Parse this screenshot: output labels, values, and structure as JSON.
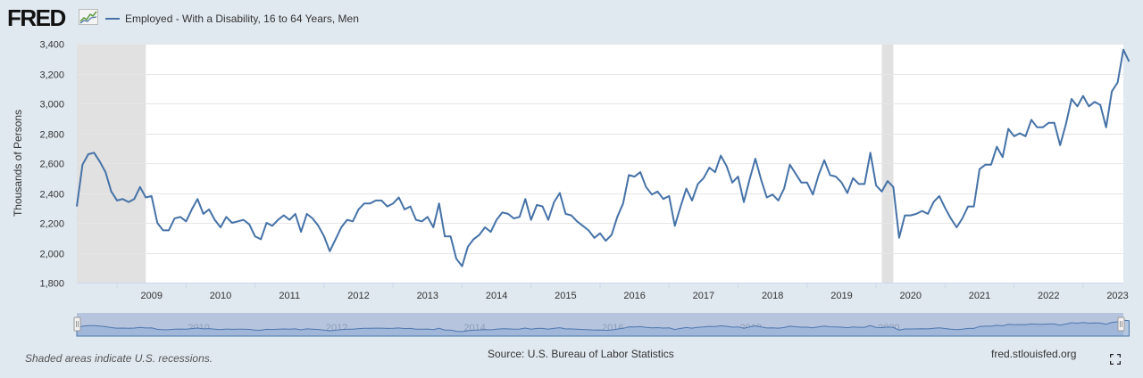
{
  "header": {
    "logo_text": "FRED",
    "legend_label": "Employed - With a Disability, 16 to 64 Years, Men"
  },
  "footer": {
    "recession_note": "Shaded areas indicate U.S. recessions.",
    "source": "Source: U.S. Bureau of Labor Statistics",
    "site": "fred.stlouisfed.org"
  },
  "icons": {
    "logo_graph": "fred-graph-icon",
    "fullscreen": "fullscreen-icon"
  },
  "colors": {
    "series": "#4572a7",
    "recession": "#e1e1e1",
    "navigator_fill": "#b5c8e2",
    "background": "#e1e9f0"
  },
  "chart_data": {
    "type": "line",
    "title": "",
    "xlabel": "",
    "ylabel": "Thousands of Persons",
    "ylim": [
      1800,
      3400
    ],
    "yticks": [
      1800,
      2000,
      2200,
      2400,
      2600,
      2800,
      3000,
      3200,
      3400
    ],
    "yticks_labels": [
      "1,800",
      "2,000",
      "2,200",
      "2,400",
      "2,600",
      "2,800",
      "3,000",
      "3,200",
      "3,400"
    ],
    "xlim": [
      "2008-06",
      "2023-08"
    ],
    "xticks": [
      "2009",
      "2010",
      "2011",
      "2012",
      "2013",
      "2014",
      "2015",
      "2016",
      "2017",
      "2018",
      "2019",
      "2020",
      "2021",
      "2022",
      "2023"
    ],
    "navigator_labels": [
      "2010",
      "2012",
      "2014",
      "2016",
      "2018",
      "2020",
      "2022"
    ],
    "grid": true,
    "legend": "top-left",
    "recessions": [
      {
        "start": "2008-06",
        "end": "2009-06"
      },
      {
        "start": "2020-02",
        "end": "2020-04"
      }
    ],
    "series": [
      {
        "name": "Employed - With a Disability, 16 to 64 Years, Men",
        "start": "2008-06",
        "frequency": "monthly",
        "values": [
          2310,
          2590,
          2660,
          2670,
          2610,
          2540,
          2410,
          2350,
          2360,
          2340,
          2360,
          2440,
          2370,
          2380,
          2200,
          2150,
          2150,
          2230,
          2240,
          2210,
          2290,
          2360,
          2260,
          2290,
          2220,
          2170,
          2240,
          2200,
          2210,
          2220,
          2190,
          2110,
          2090,
          2200,
          2180,
          2220,
          2250,
          2220,
          2260,
          2140,
          2260,
          2230,
          2180,
          2110,
          2010,
          2090,
          2170,
          2220,
          2210,
          2290,
          2330,
          2330,
          2350,
          2350,
          2310,
          2330,
          2370,
          2290,
          2310,
          2220,
          2210,
          2240,
          2170,
          2330,
          2110,
          2110,
          1960,
          1910,
          2040,
          2090,
          2120,
          2170,
          2140,
          2220,
          2270,
          2260,
          2230,
          2240,
          2360,
          2220,
          2320,
          2310,
          2220,
          2340,
          2400,
          2260,
          2250,
          2210,
          2180,
          2150,
          2100,
          2130,
          2080,
          2120,
          2240,
          2330,
          2520,
          2510,
          2540,
          2440,
          2390,
          2410,
          2360,
          2380,
          2180,
          2310,
          2430,
          2350,
          2460,
          2500,
          2570,
          2540,
          2650,
          2580,
          2470,
          2510,
          2340,
          2490,
          2630,
          2490,
          2370,
          2390,
          2350,
          2430,
          2590,
          2530,
          2470,
          2470,
          2390,
          2520,
          2620,
          2520,
          2510,
          2470,
          2400,
          2500,
          2460,
          2460,
          2670,
          2450,
          2410,
          2480,
          2440,
          2100,
          2250,
          2250,
          2260,
          2280,
          2260,
          2340,
          2380,
          2300,
          2230,
          2170,
          2230,
          2310,
          2310,
          2560,
          2590,
          2590,
          2710,
          2640,
          2830,
          2780,
          2800,
          2780,
          2890,
          2840,
          2840,
          2870,
          2870,
          2720,
          2860,
          3030,
          2980,
          3050,
          2980,
          3010,
          2990,
          2840,
          3080,
          3140,
          3360,
          3280
        ]
      }
    ]
  }
}
